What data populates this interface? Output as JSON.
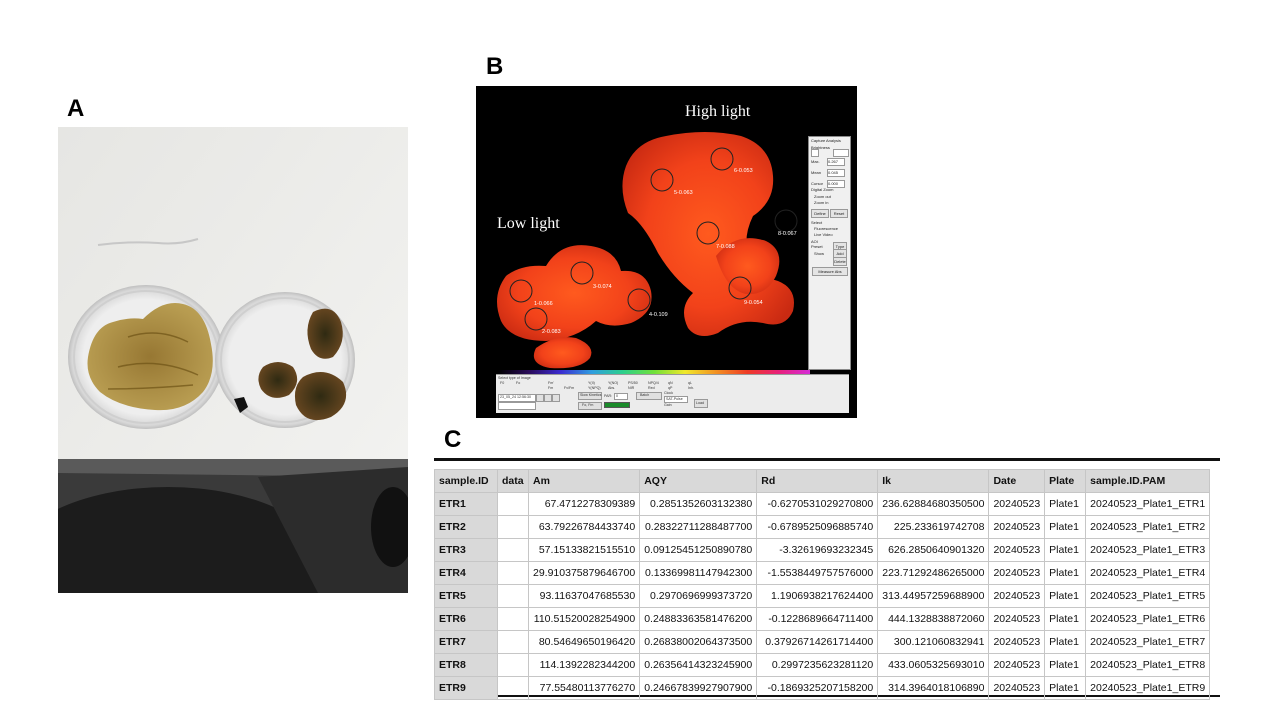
{
  "panels": {
    "a": "A",
    "b": "B",
    "c": "C"
  },
  "pam_image": {
    "label_low": "Low light",
    "label_high": "High light",
    "aoi_values": [
      "1-0.066",
      "2-0.083",
      "3-0.074",
      "4-0.109",
      "5-0.063",
      "6-0.053",
      "7-0.088",
      "8-0.067",
      "9-0.054"
    ],
    "side_panel": {
      "tabs": [
        "Capture",
        "Analysis"
      ],
      "brightness": "Brightness",
      "max_label": "Max.",
      "max_value": "0.267",
      "mean_label": "Mean",
      "mean_value": "0.045",
      "cursor_label": "Cursor",
      "cursor_value": "0.000",
      "digital_zoom": "Digital Zoom",
      "zoom_out": "Zoom out",
      "zoom_in": "Zoom in",
      "define": "Define",
      "reset": "Reset",
      "select": "Select",
      "fluorescence": "Fluorescence",
      "live_video": "Live Video",
      "aoi": "AOI",
      "preset": "Preset",
      "type": "Type",
      "show": "Show",
      "add": "Add",
      "delete": "Delete",
      "measure": "Measure Abs"
    },
    "bottom_bar": {
      "select_type": "Select type of Image",
      "image_types": [
        "F0",
        "Fo",
        "Fm'",
        "Fm",
        "Fv/Fm",
        "Y(II)",
        "Y(NPQ)",
        "Y(NO)",
        "Abs.",
        "PS/50",
        "NIR",
        "NPQ/4",
        "Red",
        "qN",
        "qP",
        "qL",
        "Inh."
      ],
      "file": "23_05_24 12:56:30",
      "slow_kinetics": "Slow Kinetics",
      "par_label": "PAR:",
      "par_value": "0",
      "fo_fm": "Fo, Fm",
      "gain_label": "Gain",
      "batch": "Batch",
      "clock": "Clock",
      "sat_pulse": "SAT-Pulse",
      "load": "Load"
    }
  },
  "table": {
    "columns": [
      "sample.ID",
      "data",
      "Am",
      "AQY",
      "Rd",
      "Ik",
      "Date",
      "Plate",
      "sample.ID.PAM"
    ],
    "rows": [
      {
        "id": "ETR1",
        "data": "",
        "am": "67.4712278309389",
        "aqy": "0.2851352603132380",
        "rd": "-0.6270531029270800",
        "ik": "236.62884680350500",
        "date": "20240523",
        "plate": "Plate1",
        "pam": "20240523_Plate1_ETR1"
      },
      {
        "id": "ETR2",
        "data": "",
        "am": "63.79226784433740",
        "aqy": "0.28322711288487700",
        "rd": "-0.6789525096885740",
        "ik": "225.233619742708",
        "date": "20240523",
        "plate": "Plate1",
        "pam": "20240523_Plate1_ETR2"
      },
      {
        "id": "ETR3",
        "data": "",
        "am": "57.15133821515510",
        "aqy": "0.09125451250890780",
        "rd": "-3.32619693232345",
        "ik": "626.2850640901320",
        "date": "20240523",
        "plate": "Plate1",
        "pam": "20240523_Plate1_ETR3"
      },
      {
        "id": "ETR4",
        "data": "",
        "am": "29.910375879646700",
        "aqy": "0.13369981147942300",
        "rd": "-1.5538449757576000",
        "ik": "223.71292486265000",
        "date": "20240523",
        "plate": "Plate1",
        "pam": "20240523_Plate1_ETR4"
      },
      {
        "id": "ETR5",
        "data": "",
        "am": "93.11637047685530",
        "aqy": "0.2970696999373720",
        "rd": "1.1906938217624400",
        "ik": "313.44957259688900",
        "date": "20240523",
        "plate": "Plate1",
        "pam": "20240523_Plate1_ETR5"
      },
      {
        "id": "ETR6",
        "data": "",
        "am": "110.51520028254900",
        "aqy": "0.24883363581476200",
        "rd": "-0.1228689664711400",
        "ik": "444.1328838872060",
        "date": "20240523",
        "plate": "Plate1",
        "pam": "20240523_Plate1_ETR6"
      },
      {
        "id": "ETR7",
        "data": "",
        "am": "80.54649650196420",
        "aqy": "0.26838002064373500",
        "rd": "0.37926714261714400",
        "ik": "300.121060832941",
        "date": "20240523",
        "plate": "Plate1",
        "pam": "20240523_Plate1_ETR7"
      },
      {
        "id": "ETR8",
        "data": "",
        "am": "114.1392282344200",
        "aqy": "0.26356414323245900",
        "rd": "0.2997235623281120",
        "ik": "433.0605325693010",
        "date": "20240523",
        "plate": "Plate1",
        "pam": "20240523_Plate1_ETR8"
      },
      {
        "id": "ETR9",
        "data": "",
        "am": "77.55480113776270",
        "aqy": "0.24667839927907900",
        "rd": "-0.1869325207158200",
        "ik": "314.3964018106890",
        "date": "20240523",
        "plate": "Plate1",
        "pam": "20240523_Plate1_ETR9"
      }
    ]
  }
}
